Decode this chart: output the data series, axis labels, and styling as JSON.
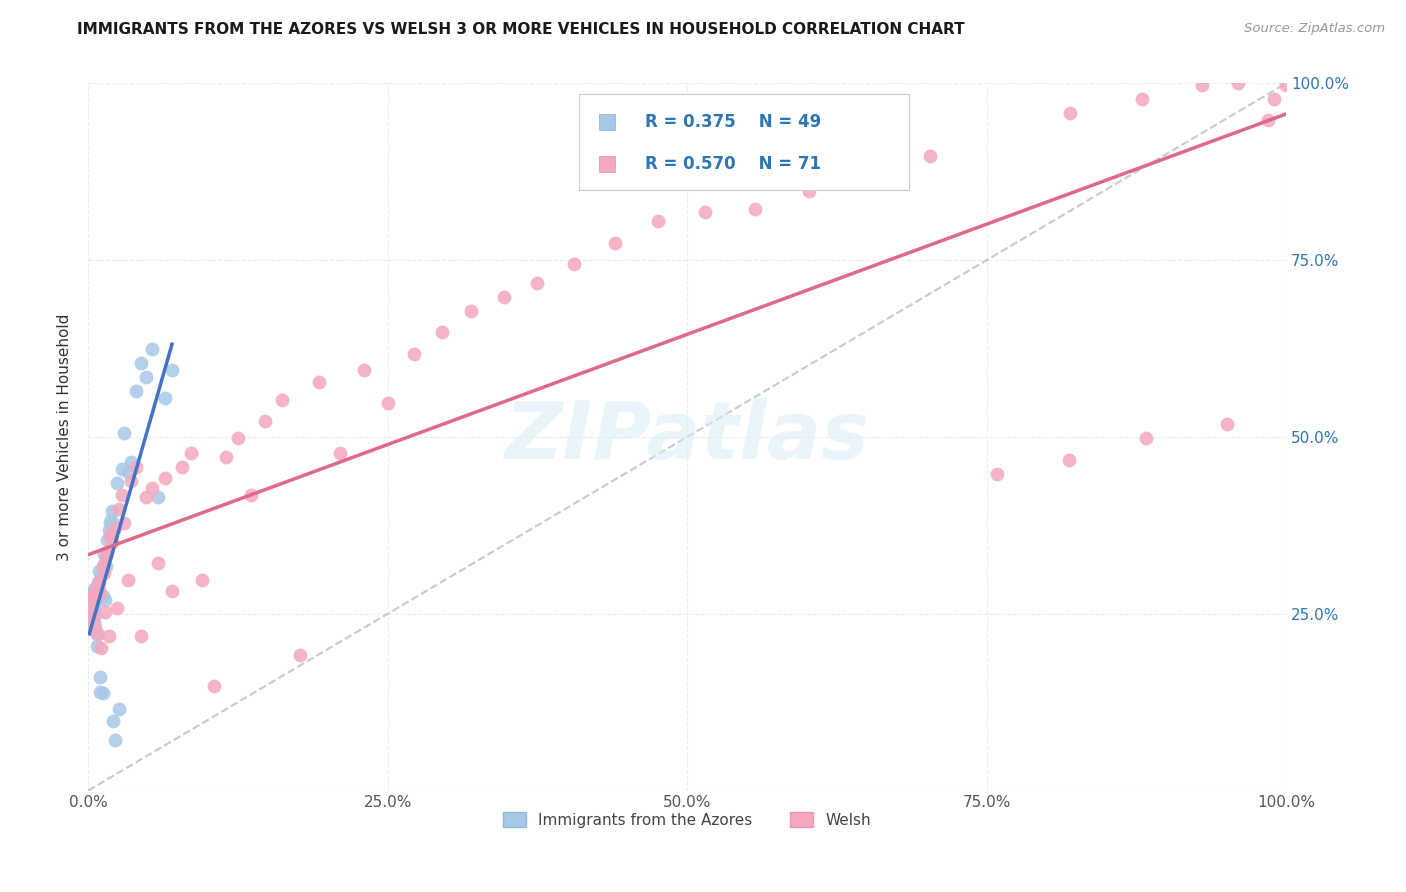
{
  "title": "IMMIGRANTS FROM THE AZORES VS WELSH 3 OR MORE VEHICLES IN HOUSEHOLD CORRELATION CHART",
  "source": "Source: ZipAtlas.com",
  "ylabel": "3 or more Vehicles in Household",
  "r_azores": 0.375,
  "n_azores": 49,
  "r_welsh": 0.57,
  "n_welsh": 71,
  "color_azores": "#a8c8e8",
  "color_welsh": "#f4a8be",
  "line_color_azores": "#4472c4",
  "line_color_welsh": "#e06888",
  "legend_r_color": "#2E75B6",
  "background_color": "#ffffff",
  "grid_color": "#e8e8e8",
  "xlim": [
    0.0,
    1.0
  ],
  "ylim": [
    0.0,
    1.0
  ],
  "xticks": [
    0.0,
    0.25,
    0.5,
    0.75,
    1.0
  ],
  "yticks": [
    0.0,
    0.25,
    0.5,
    0.75,
    1.0
  ],
  "xticklabels": [
    "0.0%",
    "25.0%",
    "50.0%",
    "75.0%",
    "100.0%"
  ],
  "right_yticklabels": [
    "",
    "25.0%",
    "50.0%",
    "75.0%",
    "100.0%"
  ],
  "azores_x": [
    0.001,
    0.001,
    0.002,
    0.002,
    0.003,
    0.003,
    0.003,
    0.004,
    0.004,
    0.005,
    0.005,
    0.005,
    0.006,
    0.006,
    0.007,
    0.007,
    0.008,
    0.008,
    0.009,
    0.009,
    0.01,
    0.01,
    0.011,
    0.012,
    0.012,
    0.013,
    0.013,
    0.014,
    0.015,
    0.016,
    0.017,
    0.018,
    0.019,
    0.02,
    0.021,
    0.022,
    0.024,
    0.026,
    0.028,
    0.03,
    0.033,
    0.036,
    0.04,
    0.044,
    0.048,
    0.053,
    0.058,
    0.064,
    0.07
  ],
  "azores_y": [
    0.27,
    0.255,
    0.265,
    0.245,
    0.275,
    0.258,
    0.24,
    0.28,
    0.23,
    0.285,
    0.238,
    0.26,
    0.248,
    0.268,
    0.205,
    0.222,
    0.275,
    0.295,
    0.285,
    0.31,
    0.14,
    0.16,
    0.305,
    0.138,
    0.275,
    0.32,
    0.335,
    0.27,
    0.318,
    0.355,
    0.368,
    0.378,
    0.382,
    0.395,
    0.098,
    0.072,
    0.435,
    0.115,
    0.455,
    0.505,
    0.45,
    0.465,
    0.565,
    0.605,
    0.585,
    0.625,
    0.415,
    0.555,
    0.595
  ],
  "welsh_x": [
    0.001,
    0.002,
    0.003,
    0.004,
    0.005,
    0.006,
    0.007,
    0.008,
    0.009,
    0.01,
    0.011,
    0.012,
    0.013,
    0.014,
    0.015,
    0.016,
    0.017,
    0.018,
    0.02,
    0.022,
    0.024,
    0.026,
    0.028,
    0.03,
    0.033,
    0.036,
    0.04,
    0.044,
    0.048,
    0.053,
    0.058,
    0.064,
    0.07,
    0.078,
    0.086,
    0.095,
    0.105,
    0.115,
    0.125,
    0.136,
    0.148,
    0.162,
    0.177,
    0.193,
    0.21,
    0.23,
    0.25,
    0.272,
    0.295,
    0.32,
    0.347,
    0.375,
    0.406,
    0.44,
    0.476,
    0.515,
    0.557,
    0.602,
    0.651,
    0.703,
    0.759,
    0.819,
    0.883,
    0.951,
    0.82,
    0.88,
    0.93,
    0.96,
    0.985,
    1.0,
    0.99
  ],
  "welsh_y": [
    0.265,
    0.252,
    0.272,
    0.242,
    0.278,
    0.232,
    0.288,
    0.222,
    0.295,
    0.278,
    0.202,
    0.318,
    0.308,
    0.252,
    0.332,
    0.338,
    0.218,
    0.362,
    0.352,
    0.372,
    0.258,
    0.398,
    0.418,
    0.378,
    0.298,
    0.438,
    0.458,
    0.218,
    0.415,
    0.428,
    0.322,
    0.442,
    0.282,
    0.458,
    0.478,
    0.298,
    0.148,
    0.472,
    0.498,
    0.418,
    0.522,
    0.552,
    0.192,
    0.578,
    0.478,
    0.595,
    0.548,
    0.618,
    0.648,
    0.678,
    0.698,
    0.718,
    0.745,
    0.775,
    0.805,
    0.818,
    0.822,
    0.848,
    0.878,
    0.898,
    0.448,
    0.468,
    0.498,
    0.518,
    0.958,
    0.978,
    0.998,
    1.0,
    0.948,
    0.998,
    0.978
  ]
}
